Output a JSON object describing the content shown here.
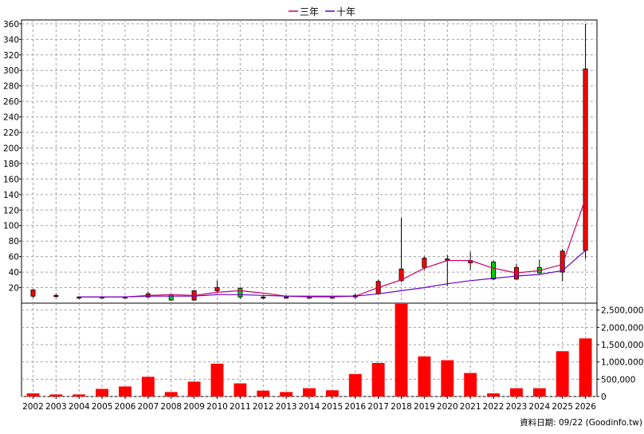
{
  "legend": [
    {
      "name": "三年",
      "color": "#cc0066"
    },
    {
      "name": "十年",
      "color": "#6600cc"
    }
  ],
  "footer": {
    "source": "資料日期: 09/22  (Goodinfo.tw)"
  },
  "colors": {
    "up": "#ff0000",
    "down": "#00cc00",
    "volume": "#ff0000",
    "grid": "#a0a0a0"
  },
  "chart_data": [
    {
      "type": "candlestick",
      "categories": [
        "2002",
        "2003",
        "2004",
        "2005",
        "2006",
        "2007",
        "2008",
        "2009",
        "2010",
        "2011",
        "2012",
        "2013",
        "2014",
        "2015",
        "2016",
        "2017",
        "2018",
        "2019",
        "2020",
        "2021",
        "2022",
        "2023",
        "2024",
        "2025",
        "2026"
      ],
      "ylim": [
        0,
        365
      ],
      "yticks": [
        20,
        40,
        60,
        80,
        100,
        120,
        140,
        160,
        180,
        200,
        220,
        240,
        260,
        280,
        300,
        320,
        340,
        360
      ],
      "grid": true,
      "legend_position": "top-center",
      "candles": [
        {
          "o": 9,
          "h": 18,
          "l": 7,
          "c": 17
        },
        {
          "o": 10,
          "h": 12,
          "l": 7,
          "c": 10
        },
        {
          "o": 8,
          "h": 9,
          "l": 5,
          "c": 8
        },
        {
          "o": 8,
          "h": 9,
          "l": 7,
          "c": 8
        },
        {
          "o": 8,
          "h": 9,
          "l": 7,
          "c": 8
        },
        {
          "o": 8,
          "h": 15,
          "l": 7,
          "c": 12
        },
        {
          "o": 11,
          "h": 12,
          "l": 3,
          "c": 4
        },
        {
          "o": 4,
          "h": 16,
          "l": 3,
          "c": 16
        },
        {
          "o": 16,
          "h": 29,
          "l": 14,
          "c": 20
        },
        {
          "o": 19,
          "h": 21,
          "l": 6,
          "c": 8
        },
        {
          "o": 8,
          "h": 10,
          "l": 5,
          "c": 8
        },
        {
          "o": 8,
          "h": 10,
          "l": 6,
          "c": 8
        },
        {
          "o": 8,
          "h": 9,
          "l": 6,
          "c": 8
        },
        {
          "o": 8,
          "h": 9,
          "l": 6,
          "c": 8
        },
        {
          "o": 8,
          "h": 12,
          "l": 6,
          "c": 10
        },
        {
          "o": 12,
          "h": 30,
          "l": 11,
          "c": 28
        },
        {
          "o": 29,
          "h": 110,
          "l": 27,
          "c": 44
        },
        {
          "o": 46,
          "h": 60,
          "l": 43,
          "c": 58
        },
        {
          "o": 56,
          "h": 62,
          "l": 22,
          "c": 57
        },
        {
          "o": 52,
          "h": 66,
          "l": 43,
          "c": 55
        },
        {
          "o": 53,
          "h": 55,
          "l": 30,
          "c": 31
        },
        {
          "o": 31,
          "h": 51,
          "l": 30,
          "c": 46
        },
        {
          "o": 46,
          "h": 56,
          "l": 38,
          "c": 39
        },
        {
          "o": 40,
          "h": 70,
          "l": 28,
          "c": 67
        },
        {
          "o": 68,
          "h": 360,
          "l": 57,
          "c": 302
        }
      ],
      "series": [
        {
          "name": "三年",
          "values": [
            null,
            null,
            8,
            8,
            8,
            10,
            11,
            10,
            14,
            16,
            13,
            9,
            8,
            8,
            9,
            20,
            30,
            45,
            55,
            55,
            45,
            39,
            42,
            50,
            135
          ]
        },
        {
          "name": "十年",
          "values": [
            null,
            null,
            8,
            8,
            8,
            9,
            9,
            9,
            11,
            11,
            10,
            9,
            9,
            9,
            9,
            12,
            16,
            20,
            25,
            29,
            32,
            35,
            37,
            42,
            68
          ]
        }
      ]
    },
    {
      "type": "bar",
      "categories": [
        "2002",
        "2003",
        "2004",
        "2005",
        "2006",
        "2007",
        "2008",
        "2009",
        "2010",
        "2011",
        "2012",
        "2013",
        "2014",
        "2015",
        "2016",
        "2017",
        "2018",
        "2019",
        "2020",
        "2021",
        "2022",
        "2023",
        "2024",
        "2025",
        "2026"
      ],
      "values": [
        90000,
        60000,
        60000,
        220000,
        290000,
        570000,
        130000,
        430000,
        950000,
        380000,
        170000,
        130000,
        240000,
        180000,
        650000,
        970000,
        2680000,
        1160000,
        1050000,
        680000,
        90000,
        240000,
        240000,
        1310000,
        1680000
      ],
      "ylim": [
        0,
        2700000
      ],
      "yticks": [
        "0",
        "500,000",
        "1,000,000",
        "1,500,000",
        "2,000,000",
        "2,500,000"
      ],
      "ytick_values": [
        0,
        500000,
        1000000,
        1500000,
        2000000,
        2500000
      ],
      "grid": true
    }
  ]
}
